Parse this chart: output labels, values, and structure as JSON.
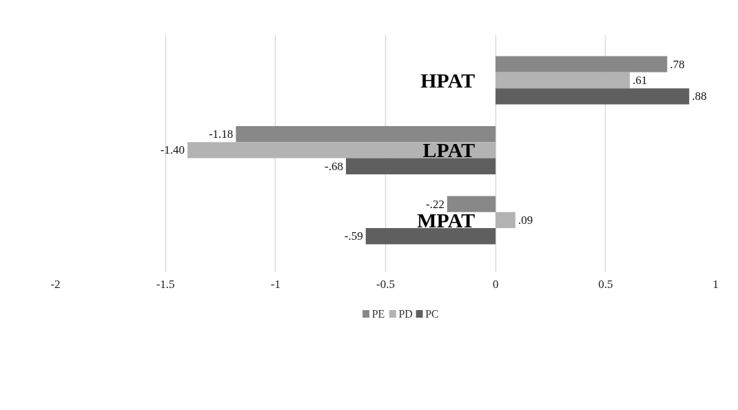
{
  "chart_data": {
    "type": "bar",
    "orientation": "horizontal",
    "categories": [
      "HPAT",
      "LPAT",
      "MPAT"
    ],
    "series": [
      {
        "name": "PE",
        "color": "#888888",
        "values": [
          0.78,
          -1.18,
          -0.22
        ],
        "value_labels": [
          ".78",
          "-1.18",
          "-.22"
        ]
      },
      {
        "name": "PD",
        "color": "#b3b3b3",
        "values": [
          0.61,
          -1.4,
          0.09
        ],
        "value_labels": [
          ".61",
          "-1.40",
          ".09"
        ]
      },
      {
        "name": "PC",
        "color": "#5f5f5f",
        "values": [
          0.88,
          -0.68,
          -0.59
        ],
        "value_labels": [
          ".88",
          "-.68",
          "-.59"
        ]
      }
    ],
    "xlim": [
      -2,
      1
    ],
    "xticks": [
      -2,
      -1.5,
      -1,
      -0.5,
      0,
      0.5,
      1
    ],
    "grid": "x",
    "legend": "bottom"
  }
}
